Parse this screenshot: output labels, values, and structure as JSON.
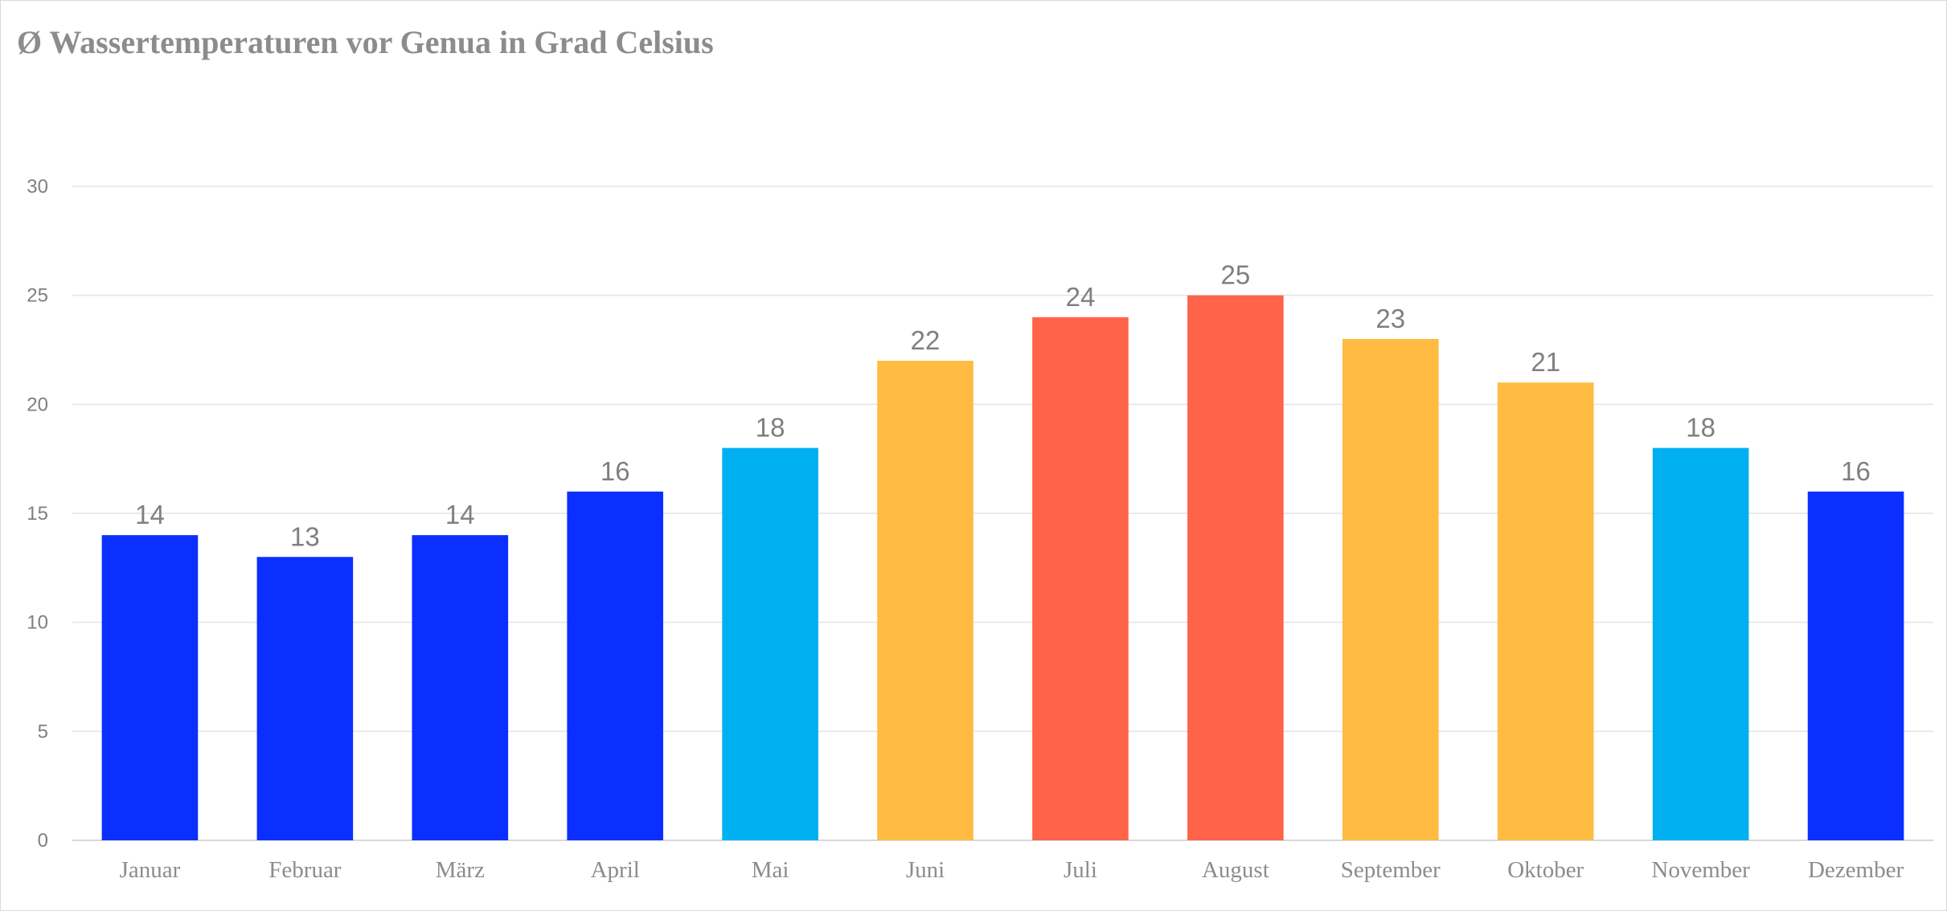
{
  "chart_data": {
    "type": "bar",
    "title": "Ø Wassertemperaturen vor Genua in Grad Celsius",
    "xlabel": "",
    "ylabel": "",
    "ylim": [
      0,
      30
    ],
    "yticks": [
      0,
      5,
      10,
      15,
      20,
      25,
      30
    ],
    "grid": true,
    "legend": "none",
    "categories": [
      "Januar",
      "Februar",
      "März",
      "April",
      "Mai",
      "Juni",
      "Juli",
      "August",
      "September",
      "Oktober",
      "November",
      "Dezember"
    ],
    "values": [
      14,
      13,
      14,
      16,
      18,
      22,
      24,
      25,
      23,
      21,
      18,
      16
    ],
    "colors": [
      "#0a2fff",
      "#0a2fff",
      "#0a2fff",
      "#0a2fff",
      "#00b0f0",
      "#ffbb42",
      "#ff6349",
      "#ff6349",
      "#ffbb42",
      "#ffbb42",
      "#00b0f0",
      "#0a2fff"
    ]
  },
  "style": {
    "gridline_color": "#e3e3e3",
    "axis_color": "#d9d9d9"
  }
}
